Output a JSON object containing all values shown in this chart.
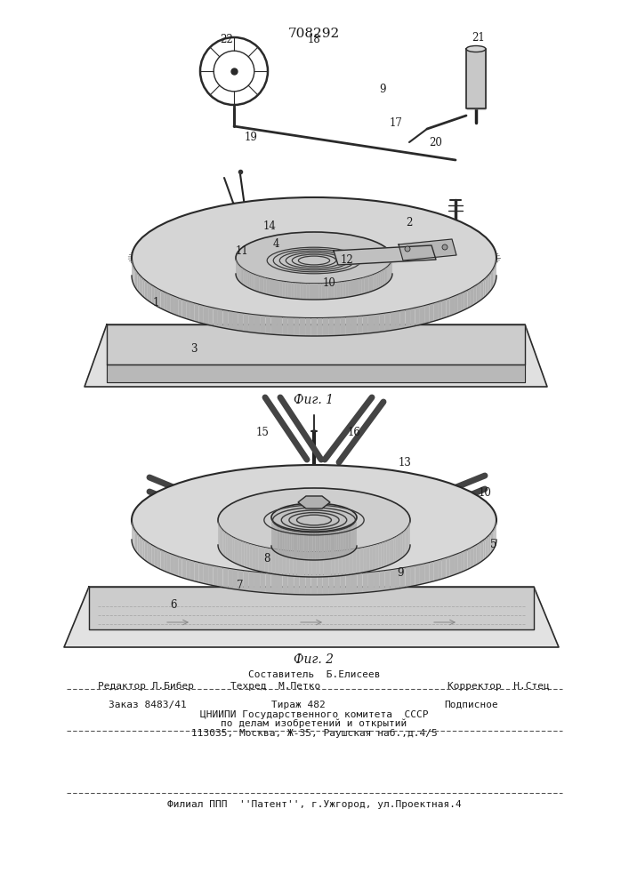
{
  "patent_number": "708292",
  "fig1_label": "Фиг. 1",
  "fig2_label": "Фиг. 2",
  "footer_line1_center": "Составитель  Б.Елисеев",
  "footer_line2_left": "Редактор Л.Бибер",
  "footer_line2_center": "Техред  М.Петко",
  "footer_line2_right": "Корректор  Н.Стец",
  "footer_line3_left": "Заказ 8483/41",
  "footer_line3_center": "Тираж 482",
  "footer_line3_right": "Подписное",
  "footer_line4": "ЦНИИПИ Государственного комитета  СССР",
  "footer_line5": "по делам изобретений и открытий",
  "footer_line6": "113035, Москва, Ж-35, Раушская наб.,д.4/5",
  "footer_dashed": "Филиал ППП  ''Патент'', г.Ужгород, ул.Проектная.4",
  "bg_color": "#ffffff",
  "line_color": "#2a2a2a",
  "text_color": "#1a1a1a"
}
